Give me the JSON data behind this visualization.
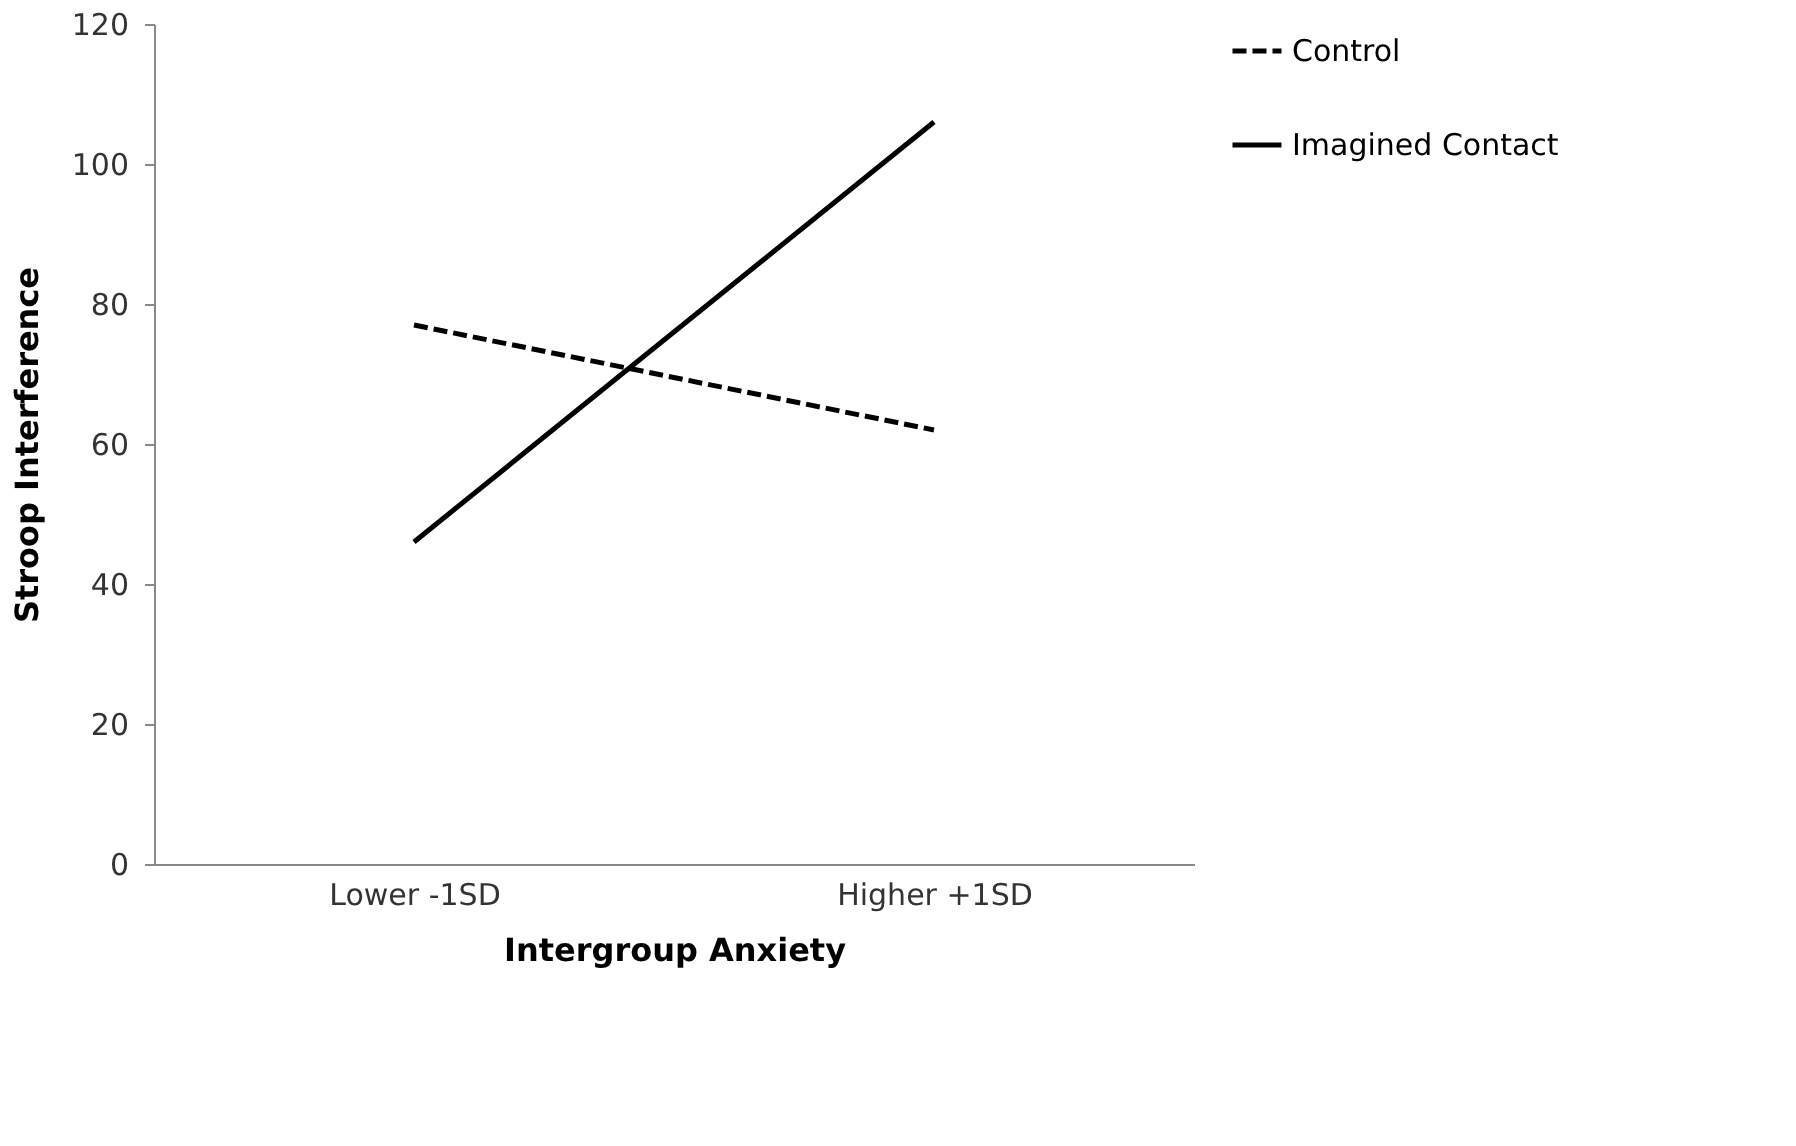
{
  "chart_data": {
    "type": "line",
    "xlabel": "Intergroup Anxiety",
    "ylabel": "Stroop Interference",
    "categories": [
      "Lower -1SD",
      "Higher +1SD"
    ],
    "series": [
      {
        "name": "Control",
        "color": "#000000",
        "values": [
          77,
          62
        ],
        "line_style": "dashed"
      },
      {
        "name": "Imagined Contact",
        "color": "#000000",
        "values": [
          46,
          106
        ],
        "line_style": "solid"
      }
    ],
    "ylim": [
      0,
      120
    ],
    "yticks": [
      0,
      20,
      40,
      60,
      80,
      100,
      120
    ],
    "grid": false,
    "legend": "top right",
    "marker": "none"
  }
}
